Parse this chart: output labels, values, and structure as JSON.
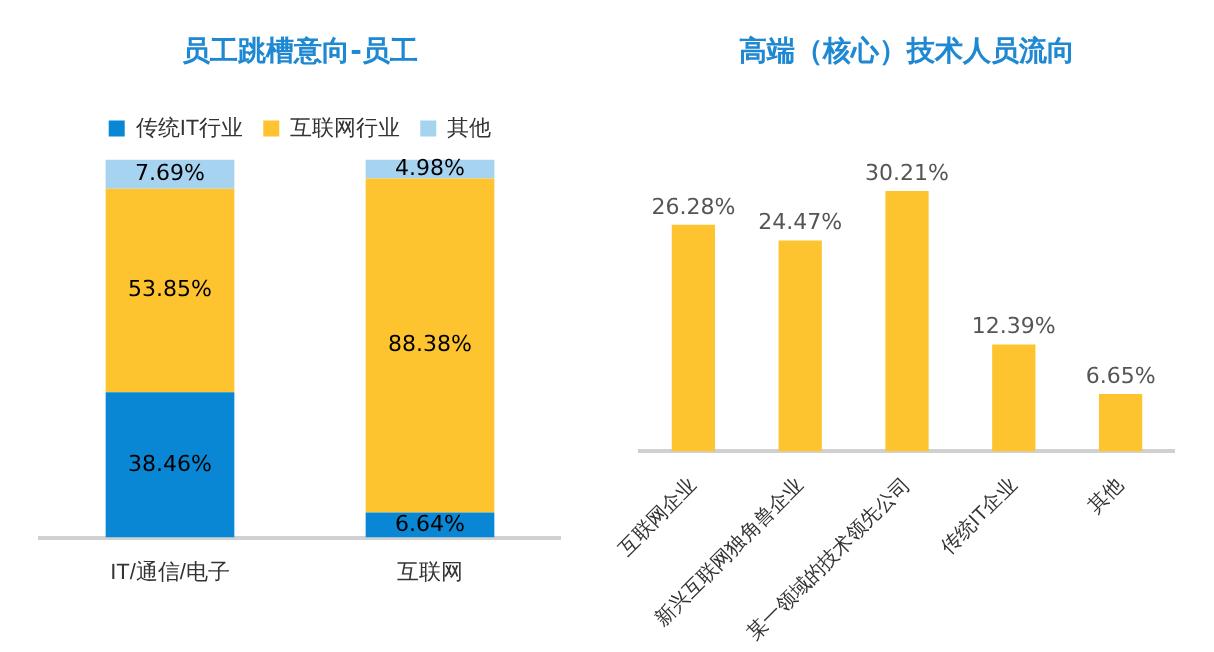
{
  "chart_data": [
    {
      "type": "bar",
      "title": "员工跳槽意向-员工",
      "stacked": true,
      "legend": "top",
      "categories": [
        "IT/通信/电子",
        "互联网"
      ],
      "series": [
        {
          "name": "传统IT行业",
          "color": "#0a87d4",
          "values": [
            38.46,
            6.64
          ],
          "value_labels": [
            "38.46%",
            "6.64%"
          ]
        },
        {
          "name": "互联网行业",
          "color": "#fec42f",
          "values": [
            53.85,
            88.38
          ],
          "value_labels": [
            "53.85%",
            "88.38%"
          ]
        },
        {
          "name": "其他",
          "color": "#a6d3f0",
          "values": [
            7.69,
            4.98
          ],
          "value_labels": [
            "7.69%",
            "4.98%"
          ]
        }
      ]
    },
    {
      "type": "bar",
      "title": "高端（核心）技术人员流向",
      "legend": false,
      "categories": [
        "互联网企业",
        "新兴互联网独角兽企业",
        "某一领域的技术领先公司",
        "传统IT企业",
        "其他"
      ],
      "series": [
        {
          "color": "#fec42f",
          "values": [
            26.28,
            24.47,
            30.21,
            12.39,
            6.65
          ],
          "value_labels": [
            "26.28%",
            "24.47%",
            "30.21%",
            "12.39%",
            "6.65%"
          ]
        }
      ]
    }
  ]
}
